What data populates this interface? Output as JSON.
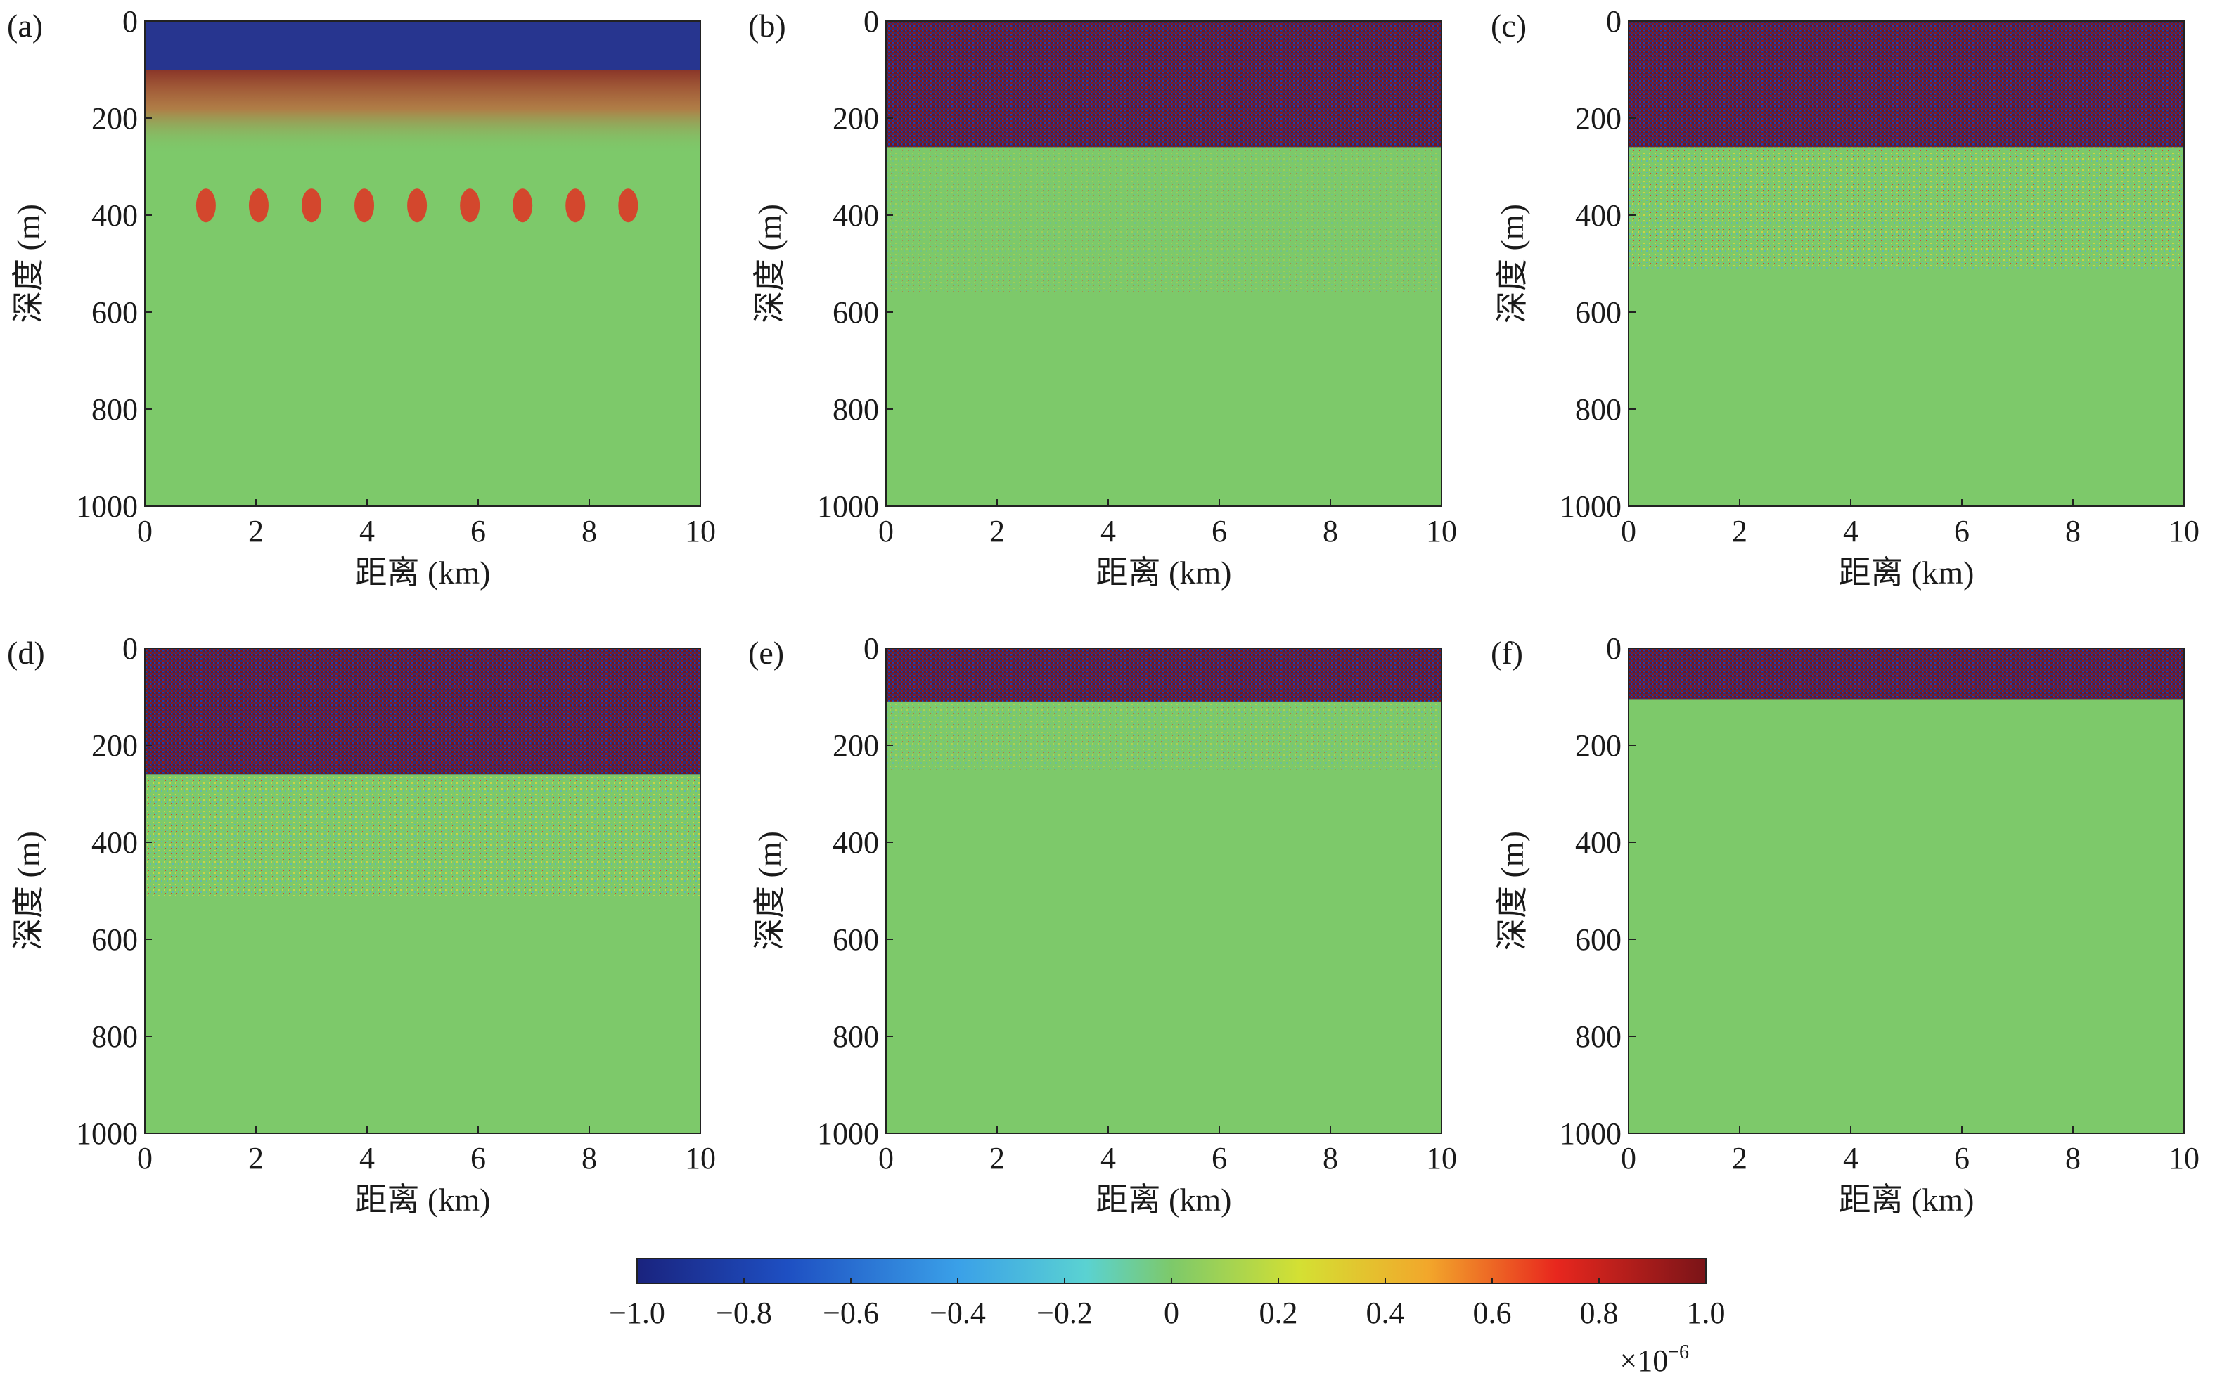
{
  "figure": {
    "panel_titles": [
      "(a)",
      "(b)",
      "(c)",
      "(d)",
      "(e)",
      "(f)"
    ],
    "xlabel": "距离 (km)",
    "ylabel": "深度 (m)",
    "colorbar": {
      "ticks": [
        "−1.0",
        "−0.8",
        "−0.6",
        "−0.4",
        "−0.2",
        "0",
        "0.2",
        "0.4",
        "0.6",
        "0.8",
        "1.0"
      ],
      "exponent_base": "×10",
      "exponent_power": "−6",
      "colormap": "jet",
      "colors": [
        "#1a237e",
        "#1e4fc2",
        "#3aa0e8",
        "#5ad2d2",
        "#7dc96a",
        "#d4e033",
        "#f2a72b",
        "#e8271e",
        "#7a1418"
      ]
    }
  },
  "chart_data": [
    {
      "type": "heatmap",
      "panel": "(a)",
      "xlabel": "距离 (km)",
      "ylabel": "深度 (m)",
      "xlim": [
        0,
        10
      ],
      "ylim": [
        1000,
        0
      ],
      "xticks": [
        0,
        2,
        4,
        6,
        8,
        10
      ],
      "yticks": [
        0,
        200,
        400,
        600,
        800,
        1000
      ],
      "clim": [
        -1e-06,
        1e-06
      ],
      "grid": false,
      "annotations": []
    },
    {
      "type": "heatmap",
      "panel": "(b)",
      "xlabel": "距离 (km)",
      "ylabel": "深度 (m)",
      "xlim": [
        0,
        10
      ],
      "ylim": [
        1000,
        0
      ],
      "xticks": [
        0,
        2,
        4,
        6,
        8,
        10
      ],
      "yticks": [
        0,
        200,
        400,
        600,
        800,
        1000
      ],
      "clim": [
        -1e-06,
        1e-06
      ],
      "grid": false,
      "annotations": []
    },
    {
      "type": "heatmap",
      "panel": "(c)",
      "xlabel": "距离 (km)",
      "ylabel": "深度 (m)",
      "xlim": [
        0,
        10
      ],
      "ylim": [
        1000,
        0
      ],
      "xticks": [
        0,
        2,
        4,
        6,
        8,
        10
      ],
      "yticks": [
        0,
        200,
        400,
        600,
        800,
        1000
      ],
      "clim": [
        -1e-06,
        1e-06
      ],
      "grid": false,
      "annotations": []
    },
    {
      "type": "heatmap",
      "panel": "(d)",
      "xlabel": "距离 (km)",
      "ylabel": "深度 (m)",
      "xlim": [
        0,
        10
      ],
      "ylim": [
        1000,
        0
      ],
      "xticks": [
        0,
        2,
        4,
        6,
        8,
        10
      ],
      "yticks": [
        0,
        200,
        400,
        600,
        800,
        1000
      ],
      "clim": [
        -1e-06,
        1e-06
      ],
      "grid": false,
      "annotations": []
    },
    {
      "type": "heatmap",
      "panel": "(e)",
      "xlabel": "距离 (km)",
      "ylabel": "深度 (m)",
      "xlim": [
        0,
        10
      ],
      "ylim": [
        1000,
        0
      ],
      "xticks": [
        0,
        2,
        4,
        6,
        8,
        10
      ],
      "yticks": [
        0,
        200,
        400,
        600,
        800,
        1000
      ],
      "clim": [
        -1e-06,
        1e-06
      ],
      "grid": false,
      "annotations": []
    },
    {
      "type": "heatmap",
      "panel": "(f)",
      "xlabel": "距离 (km)",
      "ylabel": "深度 (m)",
      "xlim": [
        0,
        10
      ],
      "ylim": [
        1000,
        0
      ],
      "xticks": [
        0,
        2,
        4,
        6,
        8,
        10
      ],
      "yticks": [
        0,
        200,
        400,
        600,
        800,
        1000
      ],
      "clim": [
        -1e-06,
        1e-06
      ],
      "grid": false,
      "annotations": []
    }
  ]
}
